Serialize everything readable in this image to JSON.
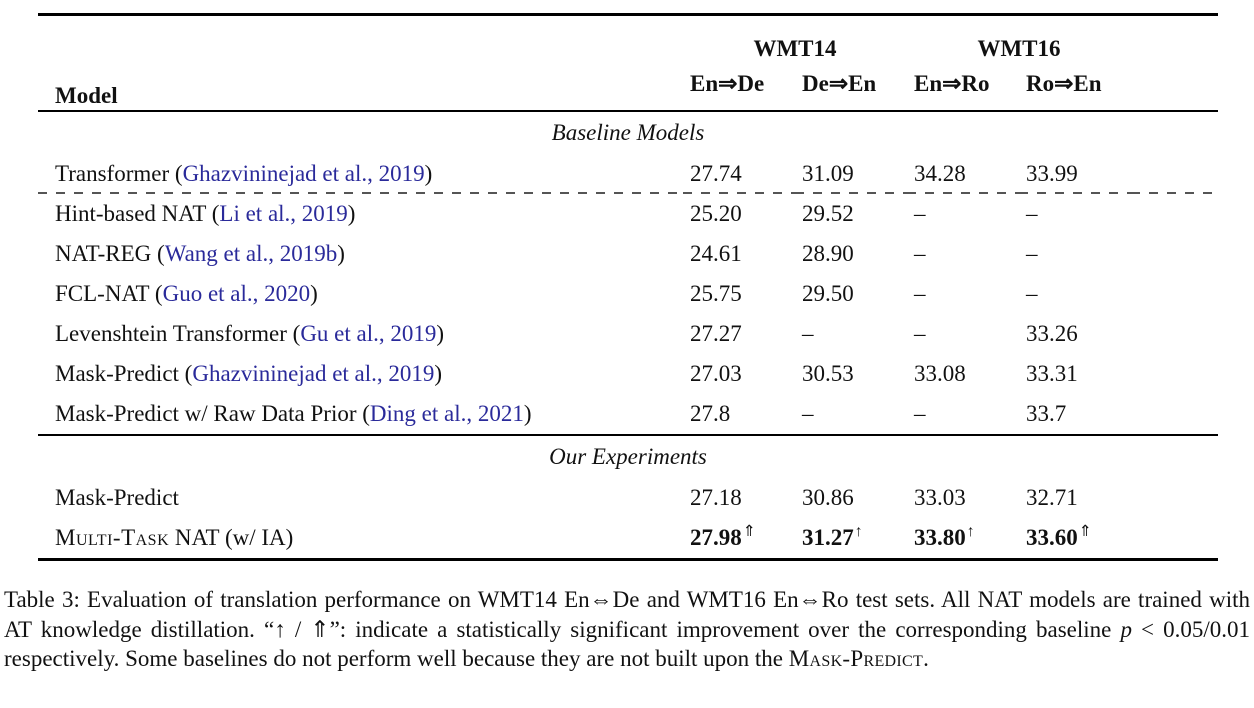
{
  "table": {
    "header": {
      "model_label": "Model",
      "groups": [
        "WMT14",
        "WMT16"
      ],
      "columns": [
        "En⇒De",
        "De⇒En",
        "En⇒Ro",
        "Ro⇒En"
      ]
    },
    "sections": [
      {
        "title": "Baseline Models",
        "ruled": false,
        "rows": [
          {
            "name": "Transformer",
            "citation": "Ghazvininejad et al., 2019",
            "values": [
              "27.74",
              "31.09",
              "34.28",
              "33.99"
            ],
            "dashed_after": true
          },
          {
            "name": "Hint-based NAT",
            "citation": "Li et al., 2019",
            "values": [
              "25.20",
              "29.52",
              "–",
              "–"
            ]
          },
          {
            "name": "NAT-REG",
            "citation": "Wang et al., 2019b",
            "values": [
              "24.61",
              "28.90",
              "–",
              "–"
            ]
          },
          {
            "name": "FCL-NAT",
            "citation": "Guo et al., 2020",
            "values": [
              "25.75",
              "29.50",
              "–",
              "–"
            ]
          },
          {
            "name": "Levenshtein Transformer",
            "citation": "Gu et al., 2019",
            "values": [
              "27.27",
              "–",
              "–",
              "33.26"
            ]
          },
          {
            "name": "Mask-Predict",
            "citation": "Ghazvininejad et al., 2019",
            "values": [
              "27.03",
              "30.53",
              "33.08",
              "33.31"
            ]
          },
          {
            "name": "Mask-Predict w/ Raw Data Prior",
            "citation": "Ding et al., 2021",
            "values": [
              "27.8",
              "–",
              "–",
              "33.7"
            ]
          }
        ]
      },
      {
        "title": "Our Experiments",
        "ruled": true,
        "rows": [
          {
            "name": "Mask-Predict",
            "values": [
              "27.18",
              "30.86",
              "33.03",
              "32.71"
            ]
          },
          {
            "name_smallcaps": "Multi-Task",
            "name_rest": " NAT (w/ IA)",
            "bold_values": true,
            "values": [
              "27.98",
              "31.27",
              "33.80",
              "33.60"
            ],
            "sups": [
              "⇑",
              "↑",
              "↑",
              "⇑"
            ]
          }
        ]
      }
    ]
  },
  "caption": {
    "segments": [
      {
        "text": "Table 3:  Evaluation of translation performance on WMT14 En⇔De and WMT16 En⇔Ro test sets.  All NAT models are trained with AT knowledge distillation. “↑ / ⇑”: indicate a statistically significant improvement over the corresponding baseline "
      },
      {
        "text": "p",
        "style": "italic"
      },
      {
        "text": " < 0.05/0.01 respectively. Some baselines do not perform well because they are not built upon the "
      },
      {
        "text": "Mask-Predict",
        "style": "smallcaps"
      },
      {
        "text": "."
      }
    ]
  },
  "colors": {
    "citation_link": "#2a2a9a",
    "text": "#111111",
    "rule": "#000000"
  }
}
